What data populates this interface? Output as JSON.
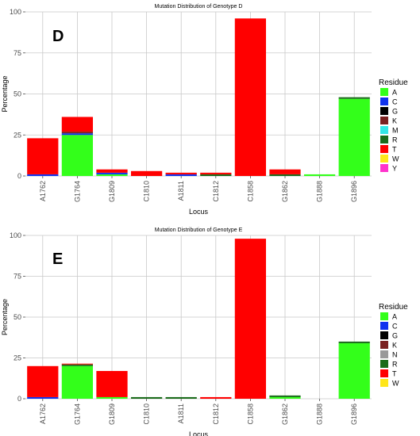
{
  "colors": {
    "A": "#33ff1a",
    "C": "#1133ee",
    "G": "#000000",
    "K": "#7a1f1f",
    "M": "#33e6e6",
    "N": "#999999",
    "R": "#1a6b1a",
    "T": "#ff0000",
    "W": "#ffe61a",
    "Y": "#ff33cc"
  },
  "chart_data": [
    {
      "type": "bar",
      "stacked": true,
      "title": "Mutation Distribution of Genotype D",
      "panel_label": "D",
      "xlabel": "Locus",
      "ylabel": "Percentage",
      "ylim": [
        0,
        100
      ],
      "yticks": [
        0,
        25,
        50,
        75,
        100
      ],
      "grid": true,
      "legend_position": "right",
      "legend_title": "Residue",
      "legend": [
        "A",
        "C",
        "G",
        "K",
        "M",
        "R",
        "T",
        "W",
        "Y"
      ],
      "categories": [
        "A1762",
        "G1764",
        "G1809",
        "C1810",
        "A1811",
        "C1812",
        "C1858",
        "G1862",
        "G1888",
        "G1896"
      ],
      "series": [
        {
          "name": "A",
          "values": [
            0,
            25,
            1,
            0,
            0,
            0,
            0,
            0,
            1,
            47
          ]
        },
        {
          "name": "C",
          "values": [
            1,
            1,
            1,
            0,
            1,
            0,
            0,
            0,
            0,
            0
          ]
        },
        {
          "name": "G",
          "values": [
            0,
            0,
            0,
            0,
            0,
            0,
            0,
            0,
            0,
            0
          ]
        },
        {
          "name": "K",
          "values": [
            0,
            1,
            0,
            0,
            0,
            0,
            0,
            0,
            0,
            0
          ]
        },
        {
          "name": "M",
          "values": [
            0,
            0,
            0,
            0,
            0,
            0,
            0,
            0,
            0,
            0
          ]
        },
        {
          "name": "R",
          "values": [
            0,
            0,
            0,
            0,
            0,
            1,
            0,
            1,
            0,
            1
          ]
        },
        {
          "name": "T",
          "values": [
            22,
            9,
            2,
            3,
            1,
            1,
            96,
            3,
            0,
            0
          ]
        },
        {
          "name": "W",
          "values": [
            0,
            0,
            0,
            0,
            0,
            0,
            0,
            0,
            0,
            0
          ]
        },
        {
          "name": "Y",
          "values": [
            0,
            0,
            0,
            0,
            0,
            0,
            0,
            0,
            0,
            0
          ]
        }
      ]
    },
    {
      "type": "bar",
      "stacked": true,
      "title": "Mutation Distribution of Genotype E",
      "panel_label": "E",
      "xlabel": "Locus",
      "ylabel": "Percentage",
      "ylim": [
        0,
        100
      ],
      "yticks": [
        0,
        25,
        50,
        75,
        100
      ],
      "grid": true,
      "legend_position": "right",
      "legend_title": "Residue",
      "legend": [
        "A",
        "C",
        "G",
        "K",
        "N",
        "R",
        "T",
        "W"
      ],
      "categories": [
        "A1762",
        "G1764",
        "G1809",
        "C1810",
        "A1811",
        "C1812",
        "C1858",
        "G1862",
        "G1888",
        "G1896"
      ],
      "series": [
        {
          "name": "A",
          "values": [
            0,
            20,
            1,
            0,
            0,
            0,
            0,
            1,
            0,
            34
          ]
        },
        {
          "name": "C",
          "values": [
            1,
            0,
            0,
            0,
            0,
            0,
            0,
            0,
            0,
            0
          ]
        },
        {
          "name": "G",
          "values": [
            0,
            0,
            0,
            0,
            0,
            0,
            0,
            0,
            0,
            0
          ]
        },
        {
          "name": "K",
          "values": [
            0,
            0,
            0,
            0,
            0,
            0,
            0,
            0,
            0,
            0
          ]
        },
        {
          "name": "N",
          "values": [
            0,
            0,
            0,
            0,
            0,
            0,
            0,
            0,
            0,
            0
          ]
        },
        {
          "name": "R",
          "values": [
            0,
            1,
            0,
            1,
            1,
            0,
            0,
            1,
            0,
            1
          ]
        },
        {
          "name": "T",
          "values": [
            19,
            0.5,
            16,
            0,
            0,
            1,
            98,
            0,
            0,
            0
          ]
        },
        {
          "name": "W",
          "values": [
            0,
            0,
            0,
            0,
            0,
            0,
            0,
            0,
            0,
            0
          ]
        }
      ]
    }
  ]
}
